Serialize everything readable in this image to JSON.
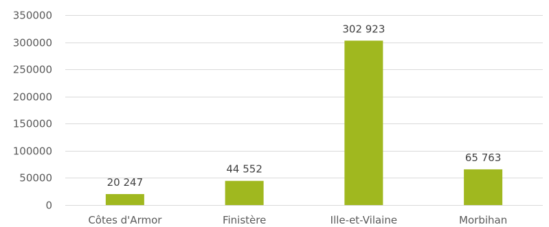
{
  "chart_data": {
    "type": "bar",
    "categories": [
      "Côtes d'Armor",
      "Finistère",
      "Ille-et-Vilaine",
      "Morbihan"
    ],
    "values": [
      20247,
      44552,
      302923,
      65763
    ],
    "data_labels": [
      "20 247",
      "44 552",
      "302 923",
      "65 763"
    ],
    "y_ticks": [
      0,
      50000,
      100000,
      150000,
      200000,
      250000,
      300000,
      350000
    ],
    "y_tick_labels": [
      "0",
      "50000",
      "100000",
      "150000",
      "200000",
      "250000",
      "300000",
      "350000"
    ],
    "ylim": [
      0,
      350000
    ],
    "grid": true,
    "legend": "none",
    "bar_color": "#a0b81f",
    "title": "",
    "xlabel": "",
    "ylabel": ""
  }
}
